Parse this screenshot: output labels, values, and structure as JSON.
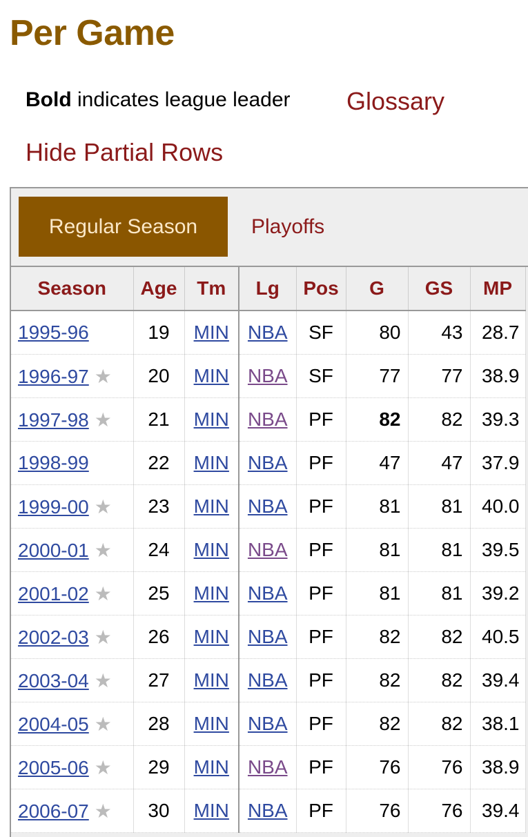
{
  "title": "Per Game",
  "legend": {
    "bold": "Bold",
    "rest": " indicates league leader"
  },
  "glossary": "Glossary",
  "hide_partial": "Hide Partial Rows",
  "tabs": {
    "regular": "Regular Season",
    "playoffs": "Playoffs"
  },
  "colors": {
    "title": "#8a5a00",
    "link": "#2f4aa0",
    "visited": "#7a4a8a",
    "accent": "#8b1a1a",
    "tab_active": "#8a5600"
  },
  "columns": [
    "Season",
    "Age",
    "Tm",
    "Lg",
    "Pos",
    "G",
    "GS",
    "MP"
  ],
  "rows": [
    {
      "season": "1995-96",
      "star": false,
      "age": "19",
      "tm": "MIN",
      "lg": "NBA",
      "lg_visited": false,
      "pos": "SF",
      "g": "80",
      "g_bold": false,
      "gs": "43",
      "mp": "28.7"
    },
    {
      "season": "1996-97",
      "star": true,
      "age": "20",
      "tm": "MIN",
      "lg": "NBA",
      "lg_visited": true,
      "pos": "SF",
      "g": "77",
      "g_bold": false,
      "gs": "77",
      "mp": "38.9"
    },
    {
      "season": "1997-98",
      "star": true,
      "age": "21",
      "tm": "MIN",
      "lg": "NBA",
      "lg_visited": true,
      "pos": "PF",
      "g": "82",
      "g_bold": true,
      "gs": "82",
      "mp": "39.3"
    },
    {
      "season": "1998-99",
      "star": false,
      "age": "22",
      "tm": "MIN",
      "lg": "NBA",
      "lg_visited": false,
      "pos": "PF",
      "g": "47",
      "g_bold": false,
      "gs": "47",
      "mp": "37.9"
    },
    {
      "season": "1999-00",
      "star": true,
      "age": "23",
      "tm": "MIN",
      "lg": "NBA",
      "lg_visited": false,
      "pos": "PF",
      "g": "81",
      "g_bold": false,
      "gs": "81",
      "mp": "40.0"
    },
    {
      "season": "2000-01",
      "star": true,
      "age": "24",
      "tm": "MIN",
      "lg": "NBA",
      "lg_visited": true,
      "pos": "PF",
      "g": "81",
      "g_bold": false,
      "gs": "81",
      "mp": "39.5"
    },
    {
      "season": "2001-02",
      "star": true,
      "age": "25",
      "tm": "MIN",
      "lg": "NBA",
      "lg_visited": false,
      "pos": "PF",
      "g": "81",
      "g_bold": false,
      "gs": "81",
      "mp": "39.2"
    },
    {
      "season": "2002-03",
      "star": true,
      "age": "26",
      "tm": "MIN",
      "lg": "NBA",
      "lg_visited": false,
      "pos": "PF",
      "g": "82",
      "g_bold": false,
      "gs": "82",
      "mp": "40.5"
    },
    {
      "season": "2003-04",
      "star": true,
      "age": "27",
      "tm": "MIN",
      "lg": "NBA",
      "lg_visited": false,
      "pos": "PF",
      "g": "82",
      "g_bold": false,
      "gs": "82",
      "mp": "39.4"
    },
    {
      "season": "2004-05",
      "star": true,
      "age": "28",
      "tm": "MIN",
      "lg": "NBA",
      "lg_visited": false,
      "pos": "PF",
      "g": "82",
      "g_bold": false,
      "gs": "82",
      "mp": "38.1"
    },
    {
      "season": "2005-06",
      "star": true,
      "age": "29",
      "tm": "MIN",
      "lg": "NBA",
      "lg_visited": true,
      "pos": "PF",
      "g": "76",
      "g_bold": false,
      "gs": "76",
      "mp": "38.9"
    },
    {
      "season": "2006-07",
      "star": true,
      "age": "30",
      "tm": "MIN",
      "lg": "NBA",
      "lg_visited": false,
      "pos": "PF",
      "g": "76",
      "g_bold": false,
      "gs": "76",
      "mp": "39.4"
    }
  ]
}
